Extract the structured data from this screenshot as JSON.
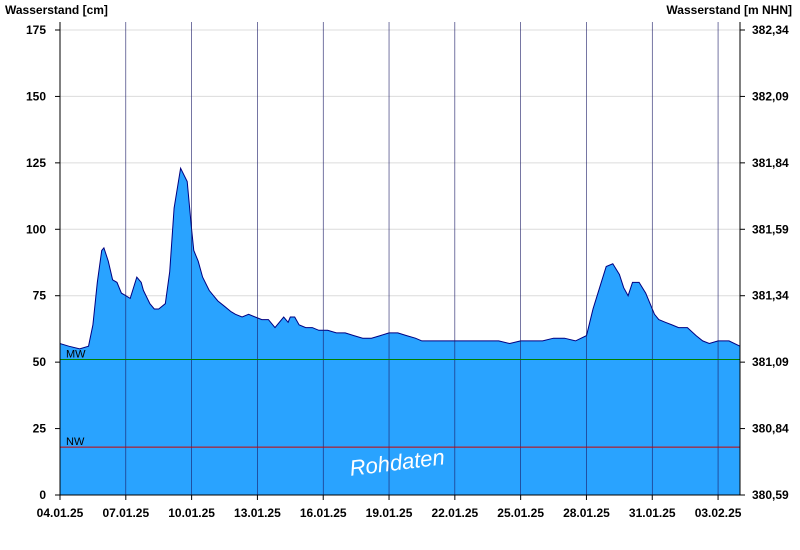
{
  "chart_data": {
    "type": "area",
    "ylabel_left": "Wasserstand [cm]",
    "ylabel_right": "Wasserstand [m NHN]",
    "x_tick_labels": [
      "04.01.25",
      "07.01.25",
      "10.01.25",
      "13.01.25",
      "16.01.25",
      "19.01.25",
      "22.01.25",
      "25.01.25",
      "28.01.25",
      "31.01.25",
      "03.02.25"
    ],
    "xlim_days": [
      0,
      31
    ],
    "x_tick_days": [
      0,
      3,
      6,
      9,
      12,
      15,
      18,
      21,
      24,
      27,
      30
    ],
    "y_left_ticks": [
      0,
      25,
      50,
      75,
      100,
      125,
      150,
      175
    ],
    "y_right_ticks": [
      "380,59",
      "380,84",
      "381,09",
      "381,34",
      "381,59",
      "381,84",
      "382,09",
      "382,34"
    ],
    "ylim": [
      0,
      175
    ],
    "grid": true,
    "fill_color": "#29a3ff",
    "line_color": "#000080",
    "reference_lines": [
      {
        "name": "MW",
        "value": 51,
        "color": "#008000"
      },
      {
        "name": "NW",
        "value": 18,
        "color": "#cc0000"
      }
    ],
    "watermark": "Rohdaten",
    "series": [
      {
        "x": [
          0,
          0.4,
          0.9,
          1.3,
          1.5,
          1.7,
          1.9,
          2.0,
          2.2,
          2.4,
          2.6,
          2.8,
          3.0,
          3.2,
          3.5,
          3.7,
          3.8,
          4.1,
          4.3,
          4.5,
          4.8,
          5.0,
          5.2,
          5.5,
          5.8,
          6.0,
          6.1,
          6.3,
          6.5,
          6.8,
          7.0,
          7.2,
          7.5,
          7.8,
          8.0,
          8.3,
          8.6,
          8.9,
          9.2,
          9.5,
          9.8,
          10.2,
          10.4,
          10.5,
          10.7,
          10.9,
          11.2,
          11.5,
          11.8,
          12.2,
          12.6,
          13.0,
          13.4,
          13.8,
          14.2,
          14.6,
          15.0,
          15.4,
          15.8,
          16.2,
          16.5,
          17.0,
          17.5,
          18.0,
          18.5,
          19.0,
          19.5,
          20.0,
          20.5,
          21.0,
          21.5,
          22.0,
          22.5,
          23.0,
          23.5,
          24.0,
          24.3,
          24.6,
          24.9,
          25.2,
          25.5,
          25.7,
          25.9,
          26.1,
          26.4,
          26.7,
          26.9,
          27.1,
          27.3,
          27.6,
          27.9,
          28.2,
          28.6,
          29.0,
          29.3,
          29.6,
          30.0,
          30.5,
          31.0
        ],
        "y": [
          57,
          56,
          55,
          56,
          64,
          80,
          92,
          93,
          88,
          81,
          80,
          76,
          75,
          74,
          82,
          80,
          77,
          72,
          70,
          70,
          72,
          84,
          108,
          123,
          118,
          100,
          92,
          88,
          82,
          77,
          75,
          73,
          71,
          69,
          68,
          67,
          68,
          67,
          66,
          66,
          63,
          67,
          65,
          67,
          67,
          64,
          63,
          63,
          62,
          62,
          61,
          61,
          60,
          59,
          59,
          60,
          61,
          61,
          60,
          59,
          58,
          58,
          58,
          58,
          58,
          58,
          58,
          58,
          57,
          58,
          58,
          58,
          59,
          59,
          58,
          60,
          70,
          78,
          86,
          87,
          83,
          78,
          75,
          80,
          80,
          76,
          72,
          68,
          66,
          65,
          64,
          63,
          63,
          60,
          58,
          57,
          58,
          58,
          56
        ]
      }
    ]
  }
}
